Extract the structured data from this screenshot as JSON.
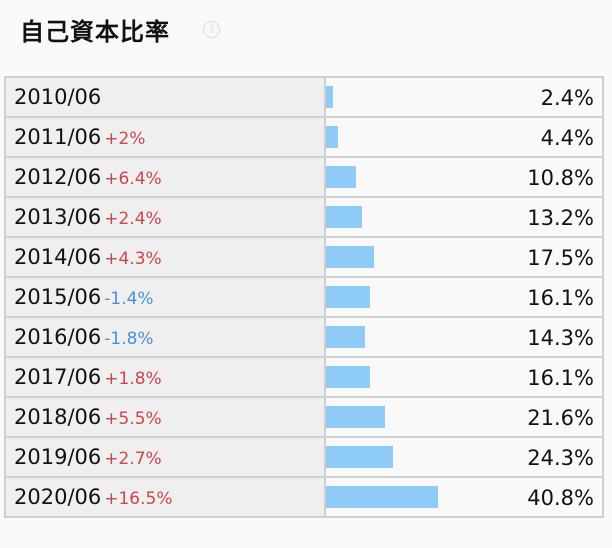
{
  "title": "自己資本比率",
  "help_icon": "question-circle-icon",
  "colors": {
    "bar": "#8ecbf7",
    "positive": "#c9474b",
    "negative": "#4a90d9"
  },
  "chart_data": {
    "type": "bar",
    "orientation": "horizontal",
    "title": "自己資本比率",
    "categories": [
      "2010/06",
      "2011/06",
      "2012/06",
      "2013/06",
      "2014/06",
      "2015/06",
      "2016/06",
      "2017/06",
      "2018/06",
      "2019/06",
      "2020/06"
    ],
    "changes": [
      "",
      "+2%",
      "+6.4%",
      "+2.4%",
      "+4.3%",
      "-1.4%",
      "-1.8%",
      "+1.8%",
      "+5.5%",
      "+2.7%",
      "+16.5%"
    ],
    "values": [
      2.4,
      4.4,
      10.8,
      13.2,
      17.5,
      16.1,
      14.3,
      16.1,
      21.6,
      24.3,
      40.8
    ],
    "labels": [
      "2.4%",
      "4.4%",
      "10.8%",
      "13.2%",
      "17.5%",
      "16.1%",
      "14.3%",
      "16.1%",
      "21.6%",
      "24.3%",
      "40.8%"
    ]
  }
}
